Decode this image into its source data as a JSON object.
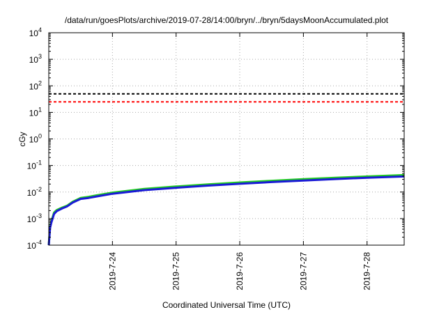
{
  "chart_data": {
    "type": "line",
    "title": "/data/run/goesPlots/archive/2019-07-28/14:00/bryn/../bryn/5daysMoonAccumulated.plot",
    "xlabel": "Coordinated Universal Time (UTC)",
    "ylabel": "cGy",
    "x_scale": "time",
    "y_scale": "log",
    "xlim": [
      "2019-07-23T00:00",
      "2019-07-28T14:00"
    ],
    "ylim": [
      0.0001,
      10000
    ],
    "grid": true,
    "x_ticks": [
      "2019-7-24",
      "2019-7-25",
      "2019-7-26",
      "2019-7-27",
      "2019-7-28"
    ],
    "y_ticks": [
      {
        "base": "10",
        "exp": "-4",
        "value": 0.0001
      },
      {
        "base": "10",
        "exp": "-3",
        "value": 0.001
      },
      {
        "base": "10",
        "exp": "-2",
        "value": 0.01
      },
      {
        "base": "10",
        "exp": "-1",
        "value": 0.1
      },
      {
        "base": "10",
        "exp": "0",
        "value": 1
      },
      {
        "base": "10",
        "exp": "1",
        "value": 10
      },
      {
        "base": "10",
        "exp": "2",
        "value": 100
      },
      {
        "base": "10",
        "exp": "3",
        "value": 1000
      },
      {
        "base": "10",
        "exp": "4",
        "value": 10000
      }
    ],
    "series": [
      {
        "color": "#22cc22",
        "style": "solid",
        "x": [
          "2019-07-23T00:00",
          "2019-07-23T00:30",
          "2019-07-23T01:00",
          "2019-07-23T02:00",
          "2019-07-23T03:00",
          "2019-07-23T05:00",
          "2019-07-23T07:00",
          "2019-07-23T09:00",
          "2019-07-23T12:00",
          "2019-07-23T15:00",
          "2019-07-23T18:00",
          "2019-07-24T00:00",
          "2019-07-24T12:00",
          "2019-07-25T00:00",
          "2019-07-25T12:00",
          "2019-07-26T00:00",
          "2019-07-26T12:00",
          "2019-07-27T00:00",
          "2019-07-27T12:00",
          "2019-07-28T00:00",
          "2019-07-28T14:00"
        ],
        "values": [
          0.0001,
          0.0005,
          0.0008,
          0.0017,
          0.0021,
          0.0026,
          0.0031,
          0.0043,
          0.006,
          0.0066,
          0.0075,
          0.0095,
          0.0132,
          0.0162,
          0.0195,
          0.023,
          0.0265,
          0.0305,
          0.0345,
          0.0385,
          0.0435
        ]
      },
      {
        "color": "#1a1ad6",
        "style": "solid",
        "x": [
          "2019-07-23T00:00",
          "2019-07-23T00:30",
          "2019-07-23T01:00",
          "2019-07-23T02:00",
          "2019-07-23T03:00",
          "2019-07-23T05:00",
          "2019-07-23T07:00",
          "2019-07-23T09:00",
          "2019-07-23T12:00",
          "2019-07-23T15:00",
          "2019-07-23T18:00",
          "2019-07-24T00:00",
          "2019-07-24T12:00",
          "2019-07-25T00:00",
          "2019-07-25T12:00",
          "2019-07-26T00:00",
          "2019-07-26T12:00",
          "2019-07-27T00:00",
          "2019-07-27T12:00",
          "2019-07-28T00:00",
          "2019-07-28T14:00"
        ],
        "values": [
          0.0001,
          0.00045,
          0.00072,
          0.0015,
          0.0019,
          0.0024,
          0.0029,
          0.004,
          0.0055,
          0.006,
          0.0068,
          0.0086,
          0.0118,
          0.0145,
          0.0175,
          0.0205,
          0.0238,
          0.0272,
          0.0308,
          0.0345,
          0.0385
        ]
      },
      {
        "color": "#000000",
        "style": "dashed",
        "x": [
          "2019-07-23T00:00",
          "2019-07-28T14:00"
        ],
        "values": [
          50,
          50
        ]
      },
      {
        "color": "#ff0000",
        "style": "dashed",
        "x": [
          "2019-07-23T00:00",
          "2019-07-28T14:00"
        ],
        "values": [
          25,
          25
        ]
      }
    ]
  }
}
